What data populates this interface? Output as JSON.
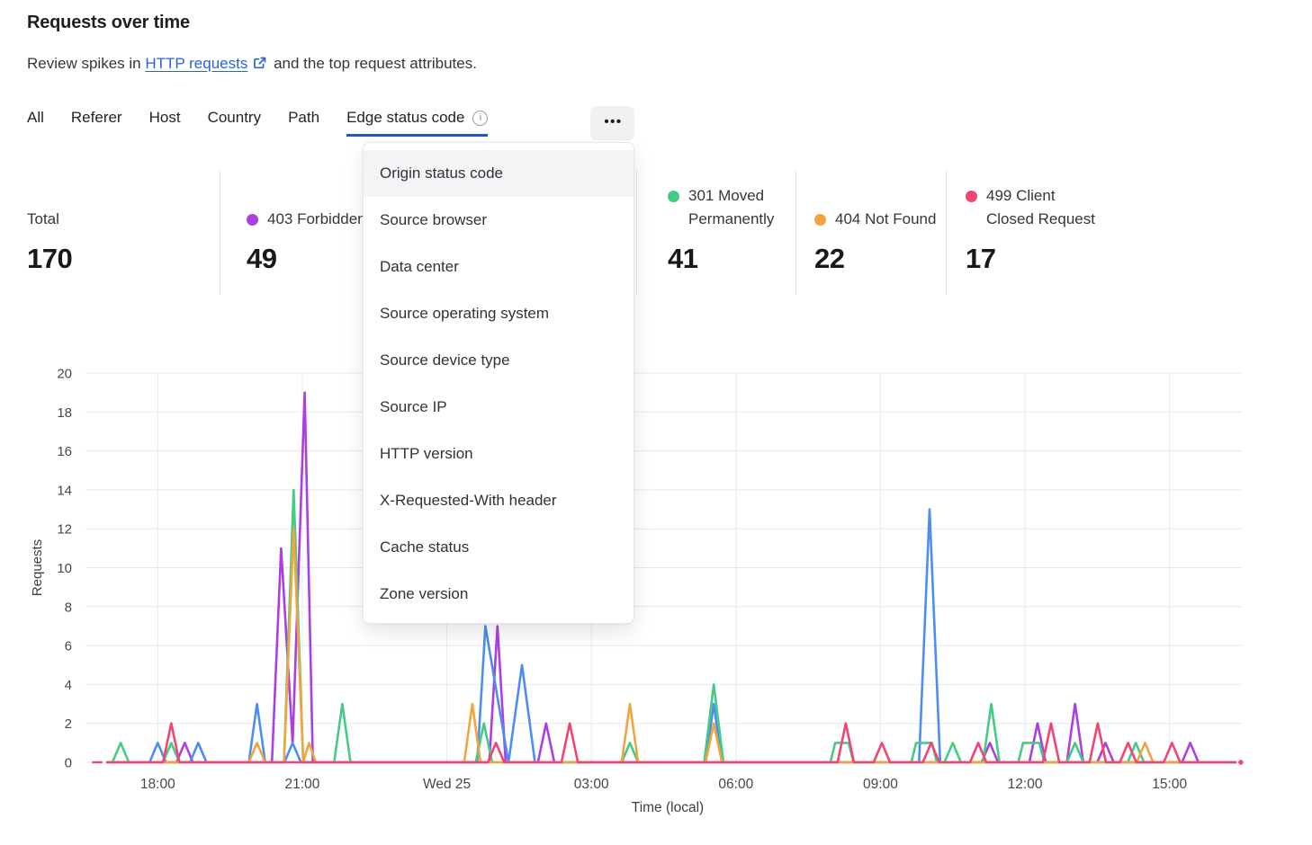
{
  "header": {
    "title": "Requests over time",
    "subtitle_prefix": "Review spikes in ",
    "link_text": "HTTP requests",
    "subtitle_suffix": " and the top request attributes."
  },
  "tabs": {
    "items": [
      {
        "label": "All"
      },
      {
        "label": "Referer"
      },
      {
        "label": "Host"
      },
      {
        "label": "Country"
      },
      {
        "label": "Path"
      },
      {
        "label": "Edge status code",
        "active": true,
        "info": true
      }
    ],
    "more_label": "•••",
    "info_glyph": "i"
  },
  "dropdown": {
    "highlighted": "Origin status code",
    "items": [
      "Origin status code",
      "Source browser",
      "Data center",
      "Source operating system",
      "Source device type",
      "Source IP",
      "HTTP version",
      "X-Requested-With header",
      "Cache status",
      "Zone version"
    ]
  },
  "stats": {
    "total": {
      "label": "Total",
      "value": "170"
    },
    "legend": [
      {
        "id": "403",
        "line1": "403 Forbidden",
        "line2": "",
        "value": "49",
        "color": "#AC3FE2"
      },
      {
        "id": "301",
        "line1": "301 Moved",
        "line2": "Permanently",
        "value": "41",
        "color": "#45CB85"
      },
      {
        "id": "404",
        "line1": "404 Not Found",
        "line2": "",
        "value": "22",
        "color": "#F2A43E"
      },
      {
        "id": "499",
        "line1": "499 Client",
        "line2": "Closed Request",
        "value": "17",
        "color": "#F14573"
      }
    ]
  },
  "chart_data": {
    "type": "line",
    "title": "Requests over time",
    "xlabel": "Time (local)",
    "ylabel": "Requests",
    "ylim": [
      0,
      20
    ],
    "y_ticks": [
      0,
      2,
      4,
      6,
      8,
      10,
      12,
      14,
      16,
      18,
      20
    ],
    "grid": true,
    "x_domain_hours": 24,
    "x_domain_note": "24h window starting 16:30, t = hours from window start",
    "x_ticks": [
      {
        "t": 1.5,
        "label": "18:00"
      },
      {
        "t": 4.5,
        "label": "21:00"
      },
      {
        "t": 7.5,
        "label": "Wed 25"
      },
      {
        "t": 10.5,
        "label": "03:00"
      },
      {
        "t": 13.5,
        "label": "06:00"
      },
      {
        "t": 16.5,
        "label": "09:00"
      },
      {
        "t": 19.5,
        "label": "12:00"
      },
      {
        "t": 22.5,
        "label": "15:00"
      }
    ],
    "series": [
      {
        "id": "403",
        "name": "403 Forbidden",
        "color": "#AC3FE2",
        "points": [
          [
            0.45,
            0
          ],
          [
            1.89,
            0
          ],
          [
            2.06,
            1
          ],
          [
            2.23,
            0
          ],
          [
            3.87,
            0
          ],
          [
            4.06,
            11
          ],
          [
            4.3,
            1
          ],
          [
            4.55,
            19
          ],
          [
            4.72,
            0
          ],
          [
            8.38,
            0
          ],
          [
            8.55,
            7
          ],
          [
            8.72,
            0
          ],
          [
            9.39,
            0
          ],
          [
            9.56,
            2
          ],
          [
            9.73,
            0
          ],
          [
            18.6,
            0
          ],
          [
            18.77,
            1
          ],
          [
            18.94,
            0
          ],
          [
            19.59,
            0
          ],
          [
            19.76,
            2
          ],
          [
            19.93,
            0
          ],
          [
            20.37,
            0
          ],
          [
            20.54,
            3
          ],
          [
            20.71,
            0
          ],
          [
            21.0,
            0
          ],
          [
            21.17,
            1
          ],
          [
            21.34,
            0
          ],
          [
            22.76,
            0
          ],
          [
            22.93,
            1
          ],
          [
            23.1,
            0
          ],
          [
            23.87,
            0
          ]
        ]
      },
      {
        "id": "blue",
        "name": "",
        "color": "#4C8DF2",
        "points": [
          [
            0.45,
            0
          ],
          [
            1.33,
            0
          ],
          [
            1.5,
            1
          ],
          [
            1.67,
            0
          ],
          [
            2.17,
            0
          ],
          [
            2.34,
            1
          ],
          [
            2.51,
            0
          ],
          [
            3.39,
            0
          ],
          [
            3.56,
            3
          ],
          [
            3.73,
            0
          ],
          [
            4.13,
            0
          ],
          [
            4.3,
            1
          ],
          [
            4.47,
            0
          ],
          [
            8.13,
            0
          ],
          [
            8.3,
            7
          ],
          [
            8.78,
            0
          ],
          [
            9.06,
            5
          ],
          [
            9.33,
            0
          ],
          [
            12.87,
            0
          ],
          [
            13.04,
            3
          ],
          [
            13.21,
            0
          ],
          [
            17.3,
            0
          ],
          [
            17.52,
            13
          ],
          [
            17.74,
            0
          ],
          [
            23.87,
            0
          ]
        ]
      },
      {
        "id": "301",
        "name": "301 Moved Permanently",
        "color": "#45CB85",
        "points": [
          [
            0.45,
            0
          ],
          [
            0.56,
            0
          ],
          [
            0.73,
            1
          ],
          [
            0.9,
            0
          ],
          [
            1.61,
            0
          ],
          [
            1.78,
            1
          ],
          [
            1.95,
            0
          ],
          [
            4.12,
            0
          ],
          [
            4.32,
            14
          ],
          [
            4.52,
            0
          ],
          [
            5.16,
            0
          ],
          [
            5.33,
            3
          ],
          [
            5.5,
            0
          ],
          [
            8.1,
            0
          ],
          [
            8.27,
            2
          ],
          [
            8.44,
            0
          ],
          [
            11.13,
            0
          ],
          [
            11.3,
            1
          ],
          [
            11.47,
            0
          ],
          [
            12.84,
            0
          ],
          [
            13.04,
            4
          ],
          [
            13.24,
            0
          ],
          [
            15.46,
            0
          ],
          [
            15.56,
            1
          ],
          [
            15.84,
            1
          ],
          [
            15.94,
            0
          ],
          [
            17.14,
            0
          ],
          [
            17.24,
            1
          ],
          [
            17.57,
            1
          ],
          [
            17.67,
            0
          ],
          [
            17.83,
            0
          ],
          [
            18.0,
            1
          ],
          [
            18.17,
            0
          ],
          [
            18.63,
            0
          ],
          [
            18.8,
            3
          ],
          [
            18.97,
            0
          ],
          [
            19.36,
            0
          ],
          [
            19.46,
            1
          ],
          [
            19.8,
            1
          ],
          [
            19.9,
            0
          ],
          [
            20.37,
            0
          ],
          [
            20.54,
            1
          ],
          [
            20.71,
            0
          ],
          [
            21.63,
            0
          ],
          [
            21.8,
            1
          ],
          [
            21.97,
            0
          ],
          [
            23.87,
            0
          ]
        ]
      },
      {
        "id": "404",
        "name": "404 Not Found",
        "color": "#F2A43E",
        "points": [
          [
            0.45,
            0
          ],
          [
            3.39,
            0
          ],
          [
            3.56,
            1
          ],
          [
            3.73,
            0
          ],
          [
            4.12,
            0
          ],
          [
            4.32,
            12
          ],
          [
            4.52,
            0
          ],
          [
            4.64,
            1
          ],
          [
            4.78,
            0
          ],
          [
            7.86,
            0
          ],
          [
            8.03,
            3
          ],
          [
            8.2,
            0
          ],
          [
            11.13,
            0
          ],
          [
            11.3,
            3
          ],
          [
            11.47,
            0
          ],
          [
            12.87,
            0
          ],
          [
            13.04,
            2
          ],
          [
            13.21,
            0
          ],
          [
            21.82,
            0
          ],
          [
            21.99,
            1
          ],
          [
            22.16,
            0
          ],
          [
            23.87,
            0
          ]
        ]
      },
      {
        "id": "499",
        "name": "499 Client Closed Request",
        "color": "#F14573",
        "pre_dash": [
          0.16,
          0.33
        ],
        "end_dot_t": 23.98,
        "points": [
          [
            0.45,
            0
          ],
          [
            1.61,
            0
          ],
          [
            1.78,
            2
          ],
          [
            1.95,
            0
          ],
          [
            8.35,
            0
          ],
          [
            8.52,
            1
          ],
          [
            8.69,
            0
          ],
          [
            9.88,
            0
          ],
          [
            10.05,
            2
          ],
          [
            10.22,
            0
          ],
          [
            15.61,
            0
          ],
          [
            15.78,
            2
          ],
          [
            15.95,
            0
          ],
          [
            16.36,
            0
          ],
          [
            16.53,
            1
          ],
          [
            16.7,
            0
          ],
          [
            17.38,
            0
          ],
          [
            17.55,
            1
          ],
          [
            17.72,
            0
          ],
          [
            18.36,
            0
          ],
          [
            18.53,
            1
          ],
          [
            18.7,
            0
          ],
          [
            19.87,
            0
          ],
          [
            20.04,
            2
          ],
          [
            20.21,
            0
          ],
          [
            20.84,
            0
          ],
          [
            21.01,
            2
          ],
          [
            21.18,
            0
          ],
          [
            21.47,
            0
          ],
          [
            21.64,
            1
          ],
          [
            21.81,
            0
          ],
          [
            22.38,
            0
          ],
          [
            22.55,
            1
          ],
          [
            22.72,
            0
          ],
          [
            23.87,
            0
          ]
        ]
      }
    ]
  }
}
